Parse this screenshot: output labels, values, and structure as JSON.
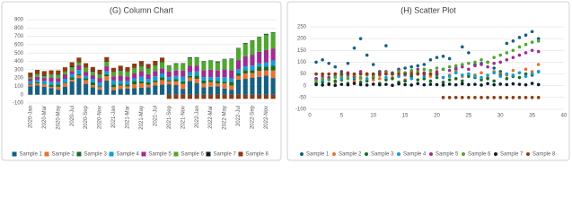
{
  "chart_data": [
    {
      "type": "bar",
      "stacked": true,
      "title": "(G) Column Chart",
      "grid": true,
      "legend": "bottom",
      "categories": [
        "2020-Jan",
        null,
        "2020-Mar",
        null,
        "2020-May",
        null,
        "2020-Jul",
        null,
        "2020-Sep",
        null,
        "2020-Nov",
        null,
        "2021-Jan",
        null,
        "2021-Mar",
        null,
        "2021-May",
        null,
        "2021-Jul",
        null,
        "2021-Sep",
        null,
        "2021-Nov",
        null,
        "2022-Jan",
        null,
        "2022-Mar",
        null,
        "2022-May",
        null,
        "2022-Jul",
        null,
        "2022-Sep",
        null,
        "2022-Nov",
        null
      ],
      "ylim": [
        -100,
        900
      ],
      "yticks": [
        -100,
        0,
        100,
        200,
        300,
        400,
        500,
        600,
        700,
        800,
        900
      ],
      "series": [
        {
          "name": "Sample 1",
          "color": "#156082",
          "values": [
            100,
            110,
            95,
            80,
            60,
            95,
            160,
            200,
            130,
            90,
            60,
            170,
            55,
            70,
            75,
            80,
            85,
            90,
            110,
            120,
            125,
            115,
            70,
            165,
            140,
            90,
            95,
            100,
            75,
            60,
            180,
            190,
            205,
            215,
            230,
            200
          ]
        },
        {
          "name": "Sample 2",
          "color": "#e97132",
          "values": [
            20,
            25,
            30,
            15,
            35,
            40,
            20,
            30,
            45,
            25,
            30,
            50,
            35,
            40,
            25,
            45,
            50,
            30,
            40,
            55,
            35,
            45,
            60,
            40,
            50,
            45,
            55,
            35,
            60,
            50,
            45,
            65,
            55,
            70,
            60,
            90
          ]
        },
        {
          "name": "Sample 3",
          "color": "#196b24",
          "values": [
            10,
            15,
            5,
            20,
            25,
            10,
            30,
            15,
            20,
            35,
            10,
            25,
            30,
            15,
            20,
            40,
            25,
            30,
            20,
            35,
            15,
            25,
            30,
            20,
            40,
            35,
            25,
            30,
            20,
            45,
            30,
            40,
            35,
            50,
            45,
            60
          ]
        },
        {
          "name": "Sample 4",
          "color": "#0f9ed5",
          "values": [
            30,
            25,
            35,
            40,
            30,
            45,
            35,
            50,
            30,
            40,
            45,
            35,
            50,
            40,
            45,
            30,
            55,
            40,
            50,
            45,
            35,
            40,
            55,
            45,
            50,
            40,
            35,
            45,
            55,
            40,
            50,
            45,
            55,
            40,
            50,
            60
          ]
        },
        {
          "name": "Sample 5",
          "color": "#a02b93",
          "values": [
            30,
            40,
            35,
            50,
            45,
            55,
            40,
            60,
            50,
            45,
            55,
            60,
            50,
            65,
            55,
            60,
            70,
            55,
            65,
            60,
            70,
            65,
            75,
            80,
            70,
            85,
            90,
            80,
            95,
            100,
            110,
            120,
            130,
            140,
            150,
            145
          ]
        },
        {
          "name": "Sample 6",
          "color": "#4ea72e",
          "values": [
            20,
            30,
            25,
            35,
            40,
            30,
            45,
            35,
            50,
            40,
            45,
            55,
            50,
            60,
            55,
            65,
            60,
            70,
            65,
            75,
            70,
            80,
            85,
            90,
            95,
            100,
            110,
            100,
            120,
            130,
            140,
            150,
            165,
            175,
            185,
            190
          ]
        },
        {
          "name": "Sample 7",
          "color": "#0b1f2b",
          "values": [
            5,
            3,
            8,
            2,
            6,
            4,
            10,
            5,
            3,
            7,
            4,
            6,
            2,
            8,
            5,
            3,
            9,
            4,
            6,
            5,
            3,
            7,
            4,
            8,
            5,
            6,
            3,
            9,
            4,
            7,
            5,
            8,
            6,
            4,
            10,
            5
          ]
        },
        {
          "name": "Sample 8",
          "color": "#8c3a12",
          "values": [
            50,
            50,
            50,
            50,
            50,
            50,
            50,
            50,
            50,
            50,
            50,
            50,
            50,
            50,
            50,
            50,
            50,
            50,
            50,
            50,
            -50,
            -50,
            -50,
            -50,
            -50,
            -50,
            -50,
            -50,
            -50,
            -50,
            -50,
            -50,
            -50,
            -50,
            -50,
            -50
          ]
        }
      ]
    },
    {
      "type": "scatter",
      "title": "(H) Scatter Plot",
      "grid": true,
      "legend": "bottom",
      "x": [
        1,
        2,
        3,
        4,
        5,
        6,
        7,
        8,
        9,
        10,
        11,
        12,
        13,
        14,
        15,
        16,
        17,
        18,
        19,
        20,
        21,
        22,
        23,
        24,
        25,
        26,
        27,
        28,
        29,
        30,
        31,
        32,
        33,
        34,
        35,
        36
      ],
      "xlim": [
        0,
        40
      ],
      "xticks": [
        0,
        5,
        10,
        15,
        20,
        25,
        30,
        35,
        40
      ],
      "ylim": [
        -100,
        250
      ],
      "yticks": [
        -100,
        -50,
        0,
        50,
        100,
        150,
        200,
        250
      ],
      "series": [
        {
          "name": "Sample 1",
          "color": "#156082",
          "values": [
            100,
            110,
            95,
            80,
            60,
            95,
            160,
            200,
            130,
            90,
            60,
            170,
            55,
            70,
            75,
            80,
            85,
            90,
            110,
            120,
            125,
            115,
            70,
            165,
            140,
            90,
            95,
            100,
            75,
            60,
            180,
            190,
            205,
            215,
            230,
            200
          ]
        },
        {
          "name": "Sample 2",
          "color": "#e97132",
          "values": [
            20,
            25,
            30,
            15,
            35,
            40,
            20,
            30,
            45,
            25,
            30,
            50,
            35,
            40,
            25,
            45,
            50,
            30,
            40,
            55,
            35,
            45,
            60,
            40,
            50,
            45,
            55,
            35,
            60,
            50,
            45,
            65,
            55,
            70,
            60,
            90
          ]
        },
        {
          "name": "Sample 3",
          "color": "#196b24",
          "values": [
            10,
            15,
            5,
            20,
            25,
            10,
            30,
            15,
            20,
            35,
            10,
            25,
            30,
            15,
            20,
            40,
            25,
            30,
            20,
            35,
            15,
            25,
            30,
            20,
            40,
            35,
            25,
            30,
            20,
            45,
            30,
            40,
            35,
            50,
            45,
            60
          ]
        },
        {
          "name": "Sample 4",
          "color": "#0f9ed5",
          "values": [
            30,
            25,
            35,
            40,
            30,
            45,
            35,
            50,
            30,
            40,
            45,
            35,
            50,
            40,
            45,
            30,
            55,
            40,
            50,
            45,
            35,
            40,
            55,
            45,
            50,
            40,
            35,
            45,
            55,
            40,
            50,
            45,
            55,
            40,
            50,
            60
          ]
        },
        {
          "name": "Sample 5",
          "color": "#a02b93",
          "values": [
            30,
            40,
            35,
            50,
            45,
            55,
            40,
            60,
            50,
            45,
            55,
            60,
            50,
            65,
            55,
            60,
            70,
            55,
            65,
            60,
            70,
            65,
            75,
            80,
            70,
            85,
            90,
            80,
            95,
            100,
            110,
            120,
            130,
            140,
            150,
            145
          ]
        },
        {
          "name": "Sample 6",
          "color": "#4ea72e",
          "values": [
            20,
            30,
            25,
            35,
            40,
            30,
            45,
            35,
            50,
            40,
            45,
            55,
            50,
            60,
            55,
            65,
            60,
            70,
            65,
            75,
            70,
            80,
            85,
            90,
            95,
            100,
            110,
            100,
            120,
            130,
            140,
            150,
            165,
            175,
            185,
            190
          ]
        },
        {
          "name": "Sample 7",
          "color": "#0b1f2b",
          "values": [
            5,
            3,
            8,
            2,
            6,
            4,
            10,
            5,
            3,
            7,
            4,
            6,
            2,
            8,
            5,
            3,
            9,
            4,
            6,
            5,
            3,
            7,
            4,
            8,
            5,
            6,
            3,
            9,
            4,
            7,
            5,
            8,
            6,
            4,
            10,
            5
          ]
        },
        {
          "name": "Sample 8",
          "color": "#8c3a12",
          "values": [
            50,
            50,
            50,
            50,
            50,
            50,
            50,
            50,
            50,
            50,
            50,
            50,
            50,
            50,
            50,
            50,
            50,
            50,
            50,
            50,
            -50,
            -50,
            -50,
            -50,
            -50,
            -50,
            -50,
            -50,
            -50,
            -50,
            -50,
            -50,
            -50,
            -50,
            -50,
            -50
          ]
        }
      ]
    }
  ]
}
